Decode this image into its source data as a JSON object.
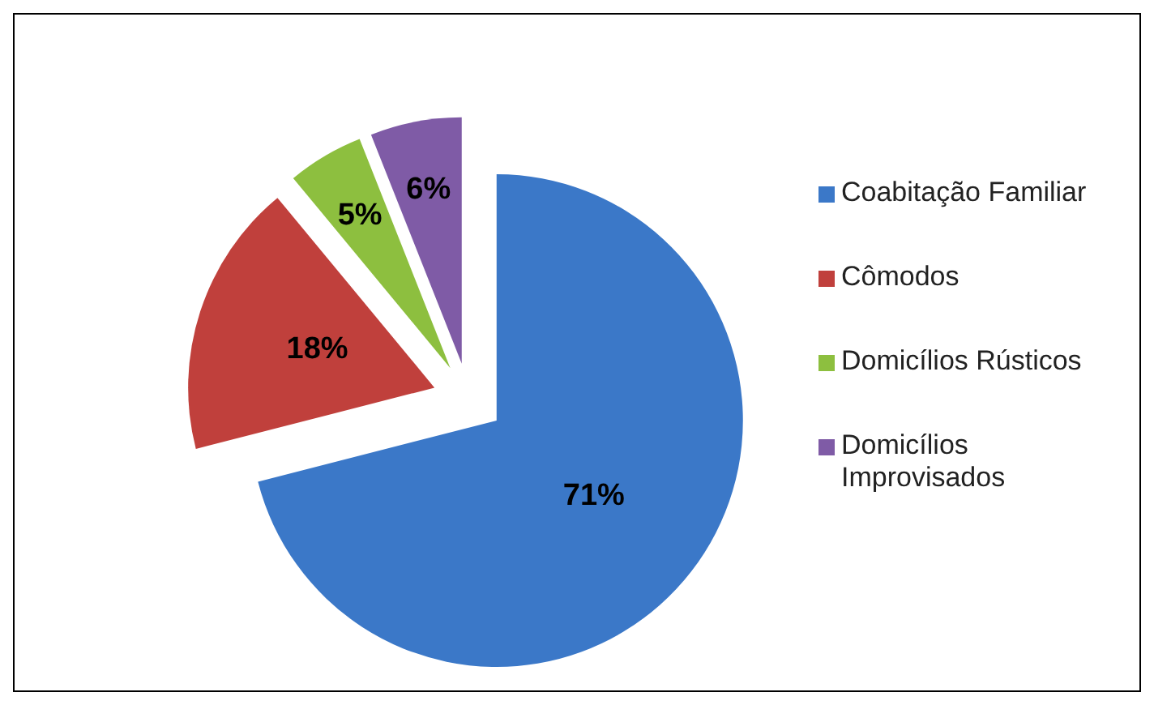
{
  "chart_data": {
    "type": "pie",
    "categories": [
      "Coabitação Familiar",
      "Cômodos",
      "Domicílios Rústicos",
      "Domicílios Improvisados"
    ],
    "values": [
      71,
      18,
      5,
      6
    ],
    "value_labels": [
      "71%",
      "18%",
      "5%",
      "6%"
    ],
    "colors": [
      "#3b78c8",
      "#c0403c",
      "#8dbf3f",
      "#7f5ba6"
    ],
    "legend": "right"
  }
}
